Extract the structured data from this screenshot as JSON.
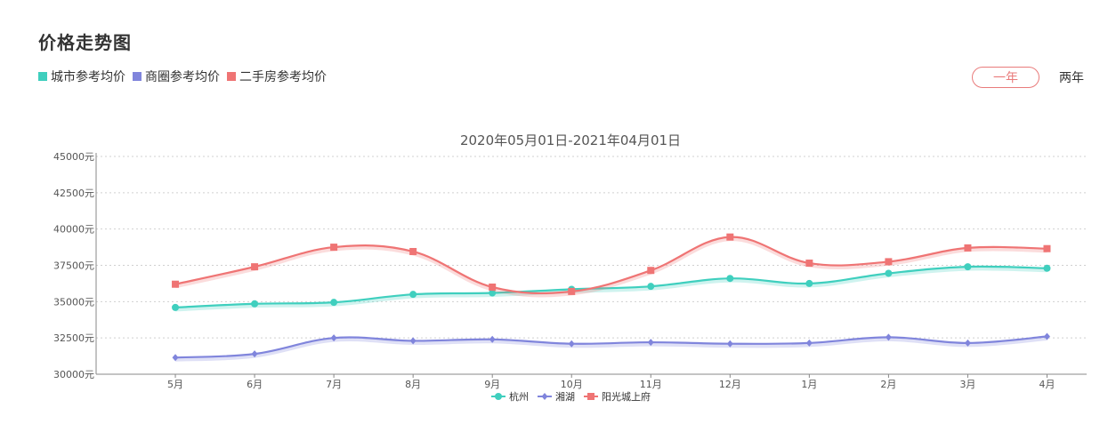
{
  "header": {
    "title": "价格走势图",
    "legend": [
      {
        "label": "城市参考均价",
        "color": "#3fcfbe"
      },
      {
        "label": "商圈参考均价",
        "color": "#8085dc"
      },
      {
        "label": "二手房参考均价",
        "color": "#ef7474"
      }
    ],
    "period_buttons": {
      "one_year": "一年",
      "two_years": "两年",
      "active": "一年"
    }
  },
  "chart_data": {
    "type": "line",
    "title": "2020年05月01日-2021年04月01日",
    "categories": [
      "5月",
      "6月",
      "7月",
      "8月",
      "9月",
      "10月",
      "11月",
      "12月",
      "1月",
      "2月",
      "3月",
      "4月"
    ],
    "yticks": [
      "30000元",
      "32500元",
      "35000元",
      "37500元",
      "40000元",
      "42500元",
      "45000元"
    ],
    "ylim": [
      30000,
      45000
    ],
    "grid": true,
    "legend_position": "bottom",
    "series": [
      {
        "name": "杭州",
        "color": "#3fcfbe",
        "marker": "circle",
        "values": [
          34600,
          34850,
          34950,
          35500,
          35600,
          35850,
          36050,
          36600,
          36250,
          36950,
          37400,
          37300
        ]
      },
      {
        "name": "湘湖",
        "color": "#8085dc",
        "marker": "diamond",
        "values": [
          31150,
          31400,
          32500,
          32300,
          32400,
          32100,
          32200,
          32100,
          32150,
          32550,
          32150,
          32600
        ]
      },
      {
        "name": "阳光城上府",
        "color": "#ef7474",
        "marker": "square",
        "values": [
          36200,
          37400,
          38750,
          38450,
          36000,
          35700,
          37150,
          39450,
          37650,
          37750,
          38700,
          38650
        ]
      }
    ]
  }
}
